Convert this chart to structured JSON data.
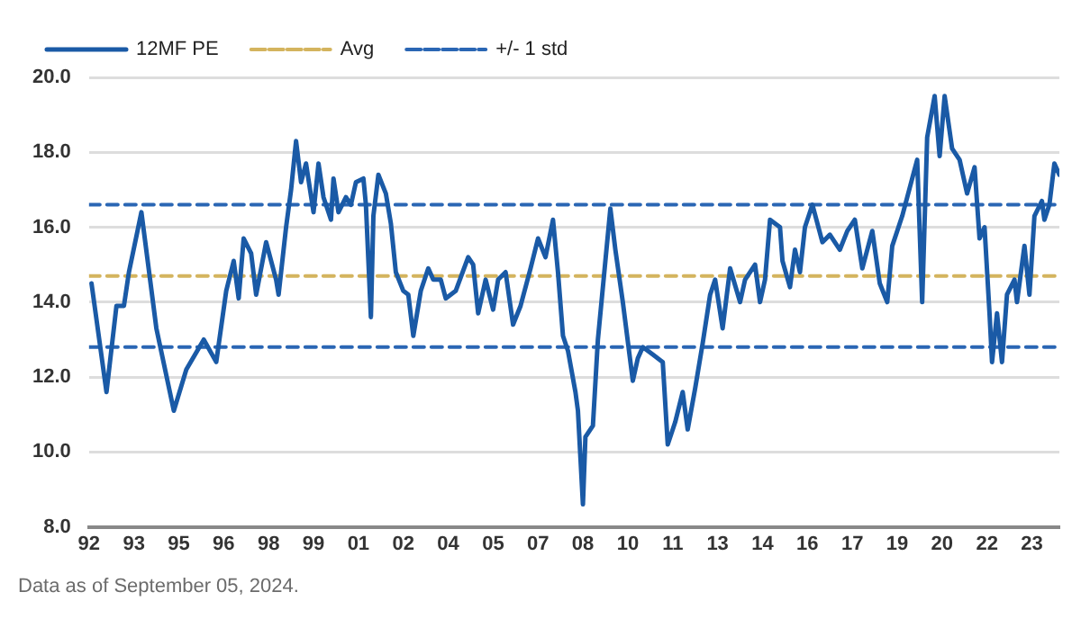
{
  "chart_data": {
    "type": "line",
    "xlim": [
      "1992-01",
      "2024-06"
    ],
    "ylim": [
      8,
      20
    ],
    "xticks": [
      {
        "value": "1992-01",
        "label": "92"
      },
      {
        "value": "1993-07",
        "label": "93"
      },
      {
        "value": "1995-01",
        "label": "95"
      },
      {
        "value": "1996-07",
        "label": "96"
      },
      {
        "value": "1998-01",
        "label": "98"
      },
      {
        "value": "1999-07",
        "label": "99"
      },
      {
        "value": "2001-01",
        "label": "01"
      },
      {
        "value": "2002-07",
        "label": "02"
      },
      {
        "value": "2004-01",
        "label": "04"
      },
      {
        "value": "2005-07",
        "label": "05"
      },
      {
        "value": "2007-01",
        "label": "07"
      },
      {
        "value": "2008-07",
        "label": "08"
      },
      {
        "value": "2010-01",
        "label": "10"
      },
      {
        "value": "2011-07",
        "label": "11"
      },
      {
        "value": "2013-01",
        "label": "13"
      },
      {
        "value": "2014-07",
        "label": "14"
      },
      {
        "value": "2016-01",
        "label": "16"
      },
      {
        "value": "2017-07",
        "label": "17"
      },
      {
        "value": "2019-01",
        "label": "19"
      },
      {
        "value": "2020-07",
        "label": "20"
      },
      {
        "value": "2022-01",
        "label": "22"
      },
      {
        "value": "2023-07",
        "label": "23"
      }
    ],
    "yticks": [
      {
        "value": 8,
        "label": "8.0"
      },
      {
        "value": 10,
        "label": "10.0"
      },
      {
        "value": 12,
        "label": "12.0"
      },
      {
        "value": 14,
        "label": "14.0"
      },
      {
        "value": 16,
        "label": "16.0"
      },
      {
        "value": 18,
        "label": "18.0"
      },
      {
        "value": 20,
        "label": "20.0"
      }
    ],
    "grid": "y",
    "legend": "top left",
    "series": [
      {
        "name": "12MF PE",
        "color": "#1a5aa6",
        "line_style": "solid",
        "x": [
          "1992-02",
          "1992-08",
          "1992-12",
          "1993-03",
          "1993-05",
          "1993-10",
          "1994-04",
          "1994-11",
          "1995-04",
          "1995-11",
          "1996-04",
          "1996-08",
          "1996-11",
          "1997-01",
          "1997-03",
          "1997-06",
          "1997-08",
          "1997-12",
          "1998-04",
          "1998-05",
          "1998-08",
          "1998-10",
          "1998-12",
          "1999-02",
          "1999-04",
          "1999-07",
          "1999-09",
          "1999-11",
          "2000-02",
          "2000-03",
          "2000-05",
          "2000-08",
          "2000-10",
          "2000-12",
          "2001-03",
          "2001-04",
          "2001-06",
          "2001-07",
          "2001-09",
          "2001-12",
          "2002-02",
          "2002-04",
          "2002-07",
          "2002-09",
          "2002-11",
          "2003-02",
          "2003-05",
          "2003-07",
          "2003-10",
          "2003-12",
          "2004-04",
          "2004-09",
          "2004-11",
          "2005-01",
          "2005-04",
          "2005-07",
          "2005-09",
          "2005-12",
          "2006-03",
          "2006-06",
          "2006-10",
          "2007-01",
          "2007-04",
          "2007-07",
          "2007-09",
          "2007-11",
          "2008-01",
          "2008-04",
          "2008-05",
          "2008-07",
          "2008-08",
          "2008-11",
          "2009-01",
          "2009-04",
          "2009-06",
          "2009-08",
          "2009-11",
          "2010-03",
          "2010-05",
          "2010-07",
          "2010-11",
          "2011-03",
          "2011-05",
          "2011-08",
          "2011-11",
          "2012-01",
          "2012-04",
          "2012-07",
          "2012-10",
          "2012-12",
          "2013-03",
          "2013-06",
          "2013-10",
          "2013-12",
          "2014-04",
          "2014-06",
          "2014-08",
          "2014-10",
          "2015-02",
          "2015-03",
          "2015-06",
          "2015-08",
          "2015-10",
          "2015-12",
          "2016-03",
          "2016-07",
          "2016-10",
          "2017-02",
          "2017-05",
          "2017-08",
          "2017-11",
          "2018-03",
          "2018-06",
          "2018-09",
          "2018-11",
          "2019-03",
          "2019-07",
          "2019-09",
          "2019-11",
          "2020-01",
          "2020-04",
          "2020-06",
          "2020-08",
          "2020-11",
          "2021-02",
          "2021-05",
          "2021-08",
          "2021-10",
          "2021-12",
          "2022-02",
          "2022-03",
          "2022-05",
          "2022-07",
          "2022-09",
          "2022-12",
          "2023-01",
          "2023-04",
          "2023-06",
          "2023-08",
          "2023-11",
          "2023-12",
          "2024-02",
          "2024-04",
          "2024-06"
        ],
        "values": [
          14.5,
          11.6,
          13.9,
          13.9,
          14.8,
          16.4,
          13.3,
          11.1,
          12.2,
          13.0,
          12.4,
          14.3,
          15.1,
          14.1,
          15.7,
          15.3,
          14.2,
          15.6,
          14.6,
          14.2,
          16.0,
          17.0,
          18.3,
          17.2,
          17.7,
          16.4,
          17.7,
          16.8,
          16.2,
          17.3,
          16.4,
          16.8,
          16.6,
          17.2,
          17.3,
          16.6,
          13.6,
          16.3,
          17.4,
          16.9,
          16.1,
          14.8,
          14.3,
          14.2,
          13.1,
          14.3,
          14.9,
          14.6,
          14.6,
          14.1,
          14.3,
          15.2,
          15.0,
          13.7,
          14.6,
          13.8,
          14.6,
          14.8,
          13.4,
          13.9,
          14.9,
          15.7,
          15.2,
          16.2,
          14.8,
          13.1,
          12.7,
          11.6,
          11.1,
          8.6,
          10.4,
          10.7,
          13.0,
          15.1,
          16.5,
          15.4,
          14.0,
          11.9,
          12.5,
          12.8,
          12.6,
          12.4,
          10.2,
          10.8,
          11.6,
          10.6,
          11.7,
          12.9,
          14.2,
          14.6,
          13.3,
          14.9,
          14.0,
          14.6,
          15.0,
          14.0,
          14.6,
          16.2,
          16.0,
          15.1,
          14.4,
          15.4,
          14.8,
          16.0,
          16.6,
          15.6,
          15.8,
          15.4,
          15.9,
          16.2,
          14.9,
          15.9,
          14.5,
          14.0,
          15.5,
          16.3,
          17.3,
          17.8,
          14.0,
          18.4,
          19.5,
          17.9,
          19.5,
          18.1,
          17.8,
          16.9,
          17.6,
          15.7,
          16.0,
          13.7,
          12.4,
          13.7,
          12.4,
          14.2,
          14.6,
          14.0,
          15.5,
          14.2,
          16.3,
          16.7,
          16.2,
          16.6,
          17.7,
          17.4
        ]
      },
      {
        "name": "Avg",
        "color": "#d4b45e",
        "line_style": "dashed",
        "x": [
          "1992-01",
          "2024-06"
        ],
        "values": [
          14.7,
          14.7
        ]
      },
      {
        "name": "+/- 1 std",
        "color": "#2a66b4",
        "line_style": "dashed",
        "x": [
          "1992-01",
          "2024-06"
        ],
        "values": [
          16.6,
          16.6
        ]
      },
      {
        "color": "#2a66b4",
        "line_style": "dashed",
        "x": [
          "1992-01",
          "2024-06"
        ],
        "values": [
          12.8,
          12.8
        ]
      }
    ],
    "annotations": [
      "Data as of September 05, 2024."
    ]
  }
}
